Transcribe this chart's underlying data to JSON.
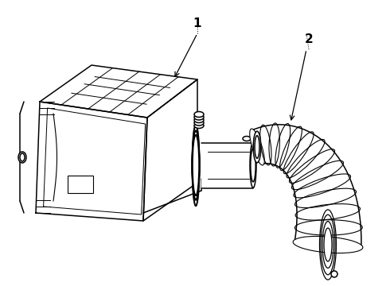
{
  "background_color": "#ffffff",
  "line_color": "#000000",
  "fig_width": 4.9,
  "fig_height": 3.6,
  "dpi": 100,
  "label1": "1",
  "label2": "2"
}
